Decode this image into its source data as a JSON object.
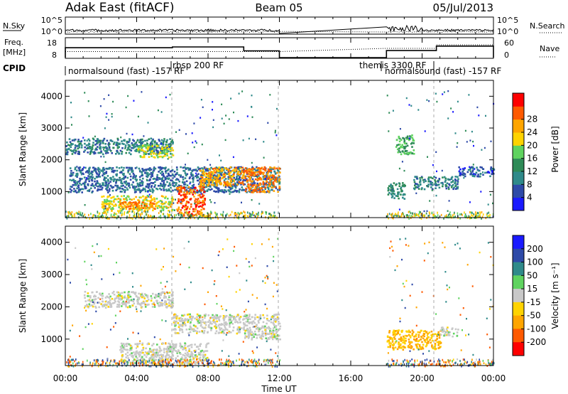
{
  "header": {
    "station": "Adak East (fitACF)",
    "beam": "Beam 05",
    "date": "05/Jul/2013"
  },
  "top_panels": {
    "nsky_label": "N.Sky",
    "nsearch_label": "N.Search",
    "count_ticks": [
      "10^5",
      "10^0"
    ],
    "freq_label_line1": "Freq.",
    "freq_label_line2": "[MHz]",
    "freq_ticks": [
      "18",
      "8"
    ],
    "nave_label": "Nave",
    "nave_ticks": [
      "60",
      "0"
    ],
    "cpid_label": "CPID",
    "cpid_segments": [
      {
        "label": "normalsound (fast) -157 RF",
        "start": 0,
        "end": 6
      },
      {
        "label": "rbsp 200 RF",
        "start": 6,
        "end": 12
      },
      {
        "label": "themis 3300 RF",
        "start": 18,
        "end": 20.8
      },
      {
        "label": "normalsound (fast) -157 RF",
        "start": 20.8,
        "end": 24
      }
    ]
  },
  "power_panel": {
    "ylabel": "Slant Range [km]",
    "yticks": [
      1000,
      2000,
      3000,
      4000
    ],
    "colorbar_label": "Power [dB]",
    "colorbar_ticks": [
      "4",
      "8",
      "12",
      "16",
      "20",
      "24",
      "28"
    ],
    "colors": [
      "#1a1aff",
      "#2e4aa8",
      "#2f8a8a",
      "#2e8b57",
      "#5fd35f",
      "#ffd300",
      "#ffa500",
      "#ff5a00",
      "#ff0000"
    ]
  },
  "velocity_panel": {
    "ylabel": "Slant Range [km]",
    "yticks": [
      1000,
      2000,
      3000,
      4000
    ],
    "colorbar_label": "Velocity [m s⁻¹]",
    "colorbar_ticks": [
      "200",
      "100",
      "50",
      "15",
      "-15",
      "-50",
      "-100",
      "-200"
    ],
    "colors": [
      "#1a1aff",
      "#2e4aa8",
      "#2f8a8a",
      "#5fd35f",
      "#c8c8c8",
      "#ffd300",
      "#ffa500",
      "#ff5a00",
      "#ff0000"
    ]
  },
  "xaxis": {
    "label": "Time UT",
    "ticks": [
      "00:00",
      "04:00",
      "08:00",
      "12:00",
      "16:00",
      "20:00",
      "00:00"
    ]
  },
  "chart_data": {
    "type": "heatmap",
    "x_range_hours": [
      0,
      24
    ],
    "y_range_km": [
      180,
      4500
    ],
    "data_gaps_hours": [
      [
        12,
        18
      ]
    ],
    "power_echo_regions": [
      {
        "t0": 0,
        "t1": 6,
        "r0": 2200,
        "r1": 2700,
        "power_db": 8
      },
      {
        "t0": 4,
        "t1": 6,
        "r0": 2100,
        "r1": 2500,
        "power_db": 18
      },
      {
        "t0": 0.2,
        "t1": 12,
        "r0": 1000,
        "r1": 1800,
        "power_db": 6
      },
      {
        "t0": 2,
        "t1": 6,
        "r0": 400,
        "r1": 900,
        "power_db": 20
      },
      {
        "t0": 3,
        "t1": 5,
        "r0": 450,
        "r1": 700,
        "power_db": 26
      },
      {
        "t0": 6.2,
        "t1": 7.8,
        "r0": 250,
        "r1": 1200,
        "power_db": 28
      },
      {
        "t0": 7.5,
        "t1": 10,
        "r0": 1200,
        "r1": 1800,
        "power_db": 24
      },
      {
        "t0": 10,
        "t1": 12,
        "r0": 1000,
        "r1": 1800,
        "power_db": 26
      },
      {
        "t0": 18,
        "t1": 19,
        "r0": 800,
        "r1": 1300,
        "power_db": 10
      },
      {
        "t0": 18.5,
        "t1": 19.5,
        "r0": 2200,
        "r1": 2800,
        "power_db": 14
      },
      {
        "t0": 19.5,
        "t1": 22,
        "r0": 1100,
        "r1": 1500,
        "power_db": 8
      },
      {
        "t0": 22,
        "t1": 24,
        "r0": 1500,
        "r1": 1800,
        "power_db": 5
      }
    ],
    "velocity_echo_regions": [
      {
        "t0": 1,
        "t1": 6,
        "r0": 2000,
        "r1": 2500,
        "velocity": 0
      },
      {
        "t0": 6,
        "t1": 10,
        "r0": 1200,
        "r1": 1800,
        "velocity": 0
      },
      {
        "t0": 10,
        "t1": 12,
        "r0": 1000,
        "r1": 1800,
        "velocity": 0
      },
      {
        "t0": 3,
        "t1": 8,
        "r0": 250,
        "r1": 900,
        "velocity": 0
      },
      {
        "t0": 18,
        "t1": 21,
        "r0": 700,
        "r1": 1300,
        "velocity": -30
      },
      {
        "t0": 21,
        "t1": 22,
        "r0": 1100,
        "r1": 1400,
        "velocity": 0
      }
    ]
  }
}
